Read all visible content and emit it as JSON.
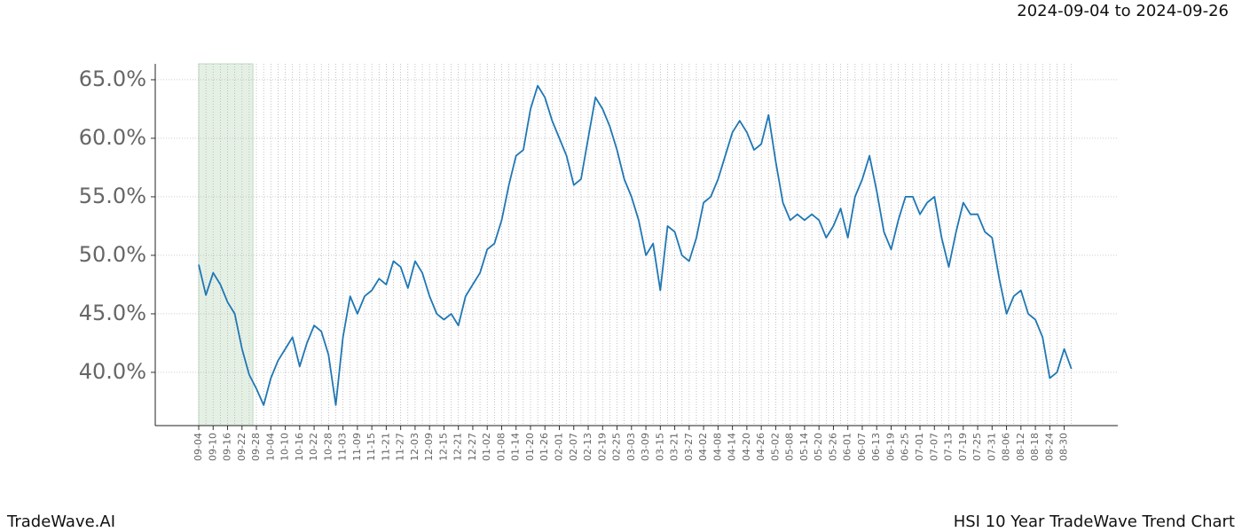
{
  "chart_data": {
    "type": "line",
    "subtitle": "2024-09-04 to 2024-09-26",
    "footer_left": "TradeWave.AI",
    "footer_right": "HSI 10 Year TradeWave Trend Chart",
    "categories": [
      "09-04",
      null,
      "09-10",
      null,
      "09-16",
      null,
      "09-22",
      null,
      "09-28",
      null,
      "10-04",
      null,
      "10-10",
      null,
      "10-16",
      null,
      "10-22",
      null,
      "10-28",
      null,
      "11-03",
      null,
      "11-09",
      null,
      "11-15",
      null,
      "11-21",
      null,
      "11-27",
      null,
      "12-03",
      null,
      "12-09",
      null,
      "12-15",
      null,
      "12-21",
      null,
      "12-27",
      null,
      "01-02",
      null,
      "01-08",
      null,
      "01-14",
      null,
      "01-20",
      null,
      "01-26",
      null,
      "02-01",
      null,
      "02-07",
      null,
      "02-13",
      null,
      "02-19",
      null,
      "02-25",
      null,
      "03-03",
      null,
      "03-09",
      null,
      "03-15",
      null,
      "03-21",
      null,
      "03-27",
      null,
      "04-02",
      null,
      "04-08",
      null,
      "04-14",
      null,
      "04-20",
      null,
      "04-26",
      null,
      "05-02",
      null,
      "05-08",
      null,
      "05-14",
      null,
      "05-20",
      null,
      "05-26",
      null,
      "06-01",
      null,
      "06-07",
      null,
      "06-13",
      null,
      "06-19",
      null,
      "06-25",
      null,
      "07-01",
      null,
      "07-07",
      null,
      "07-13",
      null,
      "07-19",
      null,
      "07-25",
      null,
      "07-31",
      null,
      "08-06",
      null,
      "08-12",
      null,
      "08-18",
      null,
      "08-24",
      null,
      "08-30",
      null
    ],
    "series": [
      {
        "color": "#1f77b4",
        "values": [
          49.2,
          46.6,
          48.5,
          47.5,
          46.0,
          45.0,
          42.0,
          39.8,
          38.6,
          37.2,
          39.5,
          41.0,
          42.0,
          43.0,
          40.5,
          42.5,
          44.0,
          43.5,
          41.5,
          37.2,
          43.0,
          46.5,
          45.0,
          46.5,
          47.0,
          48.0,
          47.5,
          49.5,
          49.0,
          47.2,
          49.5,
          48.5,
          46.5,
          45.0,
          44.5,
          45.0,
          44.0,
          46.5,
          47.5,
          48.5,
          50.5,
          51.0,
          53.0,
          56.0,
          58.5,
          59.0,
          62.5,
          64.5,
          63.5,
          61.5,
          60.0,
          58.5,
          56.0,
          56.5,
          60.0,
          63.5,
          62.5,
          61.0,
          59.0,
          56.5,
          55.0,
          53.0,
          50.0,
          51.0,
          47.0,
          52.5,
          52.0,
          50.0,
          49.5,
          51.5,
          54.5,
          55.0,
          56.5,
          58.5,
          60.5,
          61.5,
          60.5,
          59.0,
          59.5,
          62.0,
          58.0,
          54.5,
          53.0,
          53.5,
          53.0,
          53.5,
          53.0,
          51.5,
          52.5,
          54.0,
          51.5,
          55.0,
          56.5,
          58.5,
          55.5,
          52.0,
          50.5,
          53.0,
          55.0,
          55.0,
          53.5,
          54.5,
          55.0,
          51.5,
          49.0,
          52.0,
          54.5,
          53.5,
          53.5,
          52.0,
          51.5,
          48.0,
          45.0,
          46.5,
          47.0,
          45.0,
          44.5,
          43.0,
          39.5,
          40.0,
          42.0,
          40.3
        ]
      }
    ],
    "ylim": [
      35.45,
      66.36
    ],
    "yticks": [
      {
        "value": 40,
        "label": "40.0%"
      },
      {
        "value": 45,
        "label": "45.0%"
      },
      {
        "value": 50,
        "label": "50.0%"
      },
      {
        "value": 55,
        "label": "55.0%"
      },
      {
        "value": 60,
        "label": "60.0%"
      },
      {
        "value": 65,
        "label": "65.0%"
      }
    ],
    "grid": true,
    "shade": {
      "start": "09-04",
      "end": "09-28",
      "color": "#e5f0e5"
    }
  }
}
